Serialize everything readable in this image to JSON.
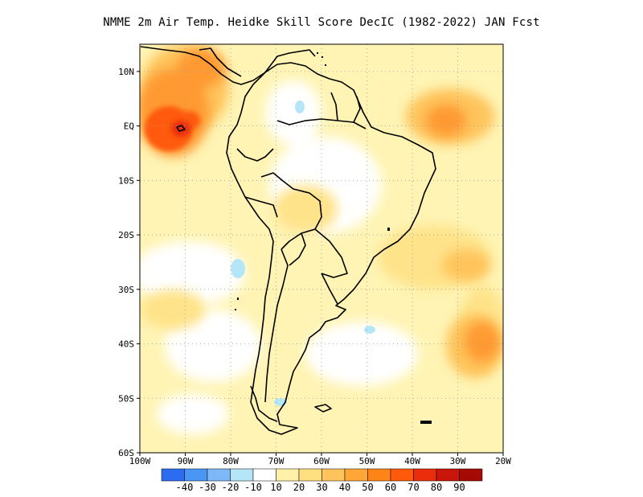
{
  "title": "NMME  2m Air Temp. Heidke Skill Score DecIC (1982-2022) JAN Fcst",
  "map": {
    "lon_range": [
      -100,
      -20
    ],
    "lat_range": [
      -60,
      15
    ],
    "lat_ticks": [
      {
        "value": 10,
        "label": "10N"
      },
      {
        "value": 0,
        "label": "EQ"
      },
      {
        "value": -10,
        "label": "10S"
      },
      {
        "value": -20,
        "label": "20S"
      },
      {
        "value": -30,
        "label": "30S"
      },
      {
        "value": -40,
        "label": "40S"
      },
      {
        "value": -50,
        "label": "50S"
      },
      {
        "value": -60,
        "label": "60S"
      }
    ],
    "lon_ticks": [
      {
        "value": -100,
        "label": "100W"
      },
      {
        "value": -90,
        "label": "90W"
      },
      {
        "value": -80,
        "label": "80W"
      },
      {
        "value": -70,
        "label": "70W"
      },
      {
        "value": -60,
        "label": "60W"
      },
      {
        "value": -50,
        "label": "50W"
      },
      {
        "value": -40,
        "label": "40W"
      },
      {
        "value": -30,
        "label": "30W"
      },
      {
        "value": -20,
        "label": "20W"
      }
    ],
    "grid": "dotted",
    "regions": [
      {
        "name": "eastern pacific equatorial",
        "lon": -90,
        "lat": 2,
        "level": 60
      },
      {
        "name": "central america coast",
        "lon": -85,
        "lat": 11,
        "level": 40
      },
      {
        "name": "tropical atlantic",
        "lon": -34,
        "lat": 1,
        "level": 40
      },
      {
        "name": "south atlantic southeast",
        "lon": -27,
        "lat": -42,
        "level": 50
      },
      {
        "name": "south atlantic east",
        "lon": -32,
        "lat": -23,
        "level": 30
      },
      {
        "name": "pacific chile coast",
        "lon": -93,
        "lat": -36,
        "level": 20
      },
      {
        "name": "amazon",
        "lon": -60,
        "lat": -5,
        "level": 10
      }
    ]
  },
  "colorbar": {
    "colors": [
      "#2b6cf0",
      "#4a96f5",
      "#7fb8f8",
      "#b5e6f8",
      "#ffffff",
      "#fff1a8",
      "#ffdf80",
      "#ffc45c",
      "#ffa637",
      "#ff8417",
      "#ff5a0b",
      "#ea2d0a",
      "#c9150a",
      "#a50a05"
    ],
    "labels": [
      "-40",
      "-30",
      "-20",
      "-10",
      "10",
      "20",
      "30",
      "40",
      "50",
      "60",
      "70",
      "80",
      "90"
    ]
  }
}
